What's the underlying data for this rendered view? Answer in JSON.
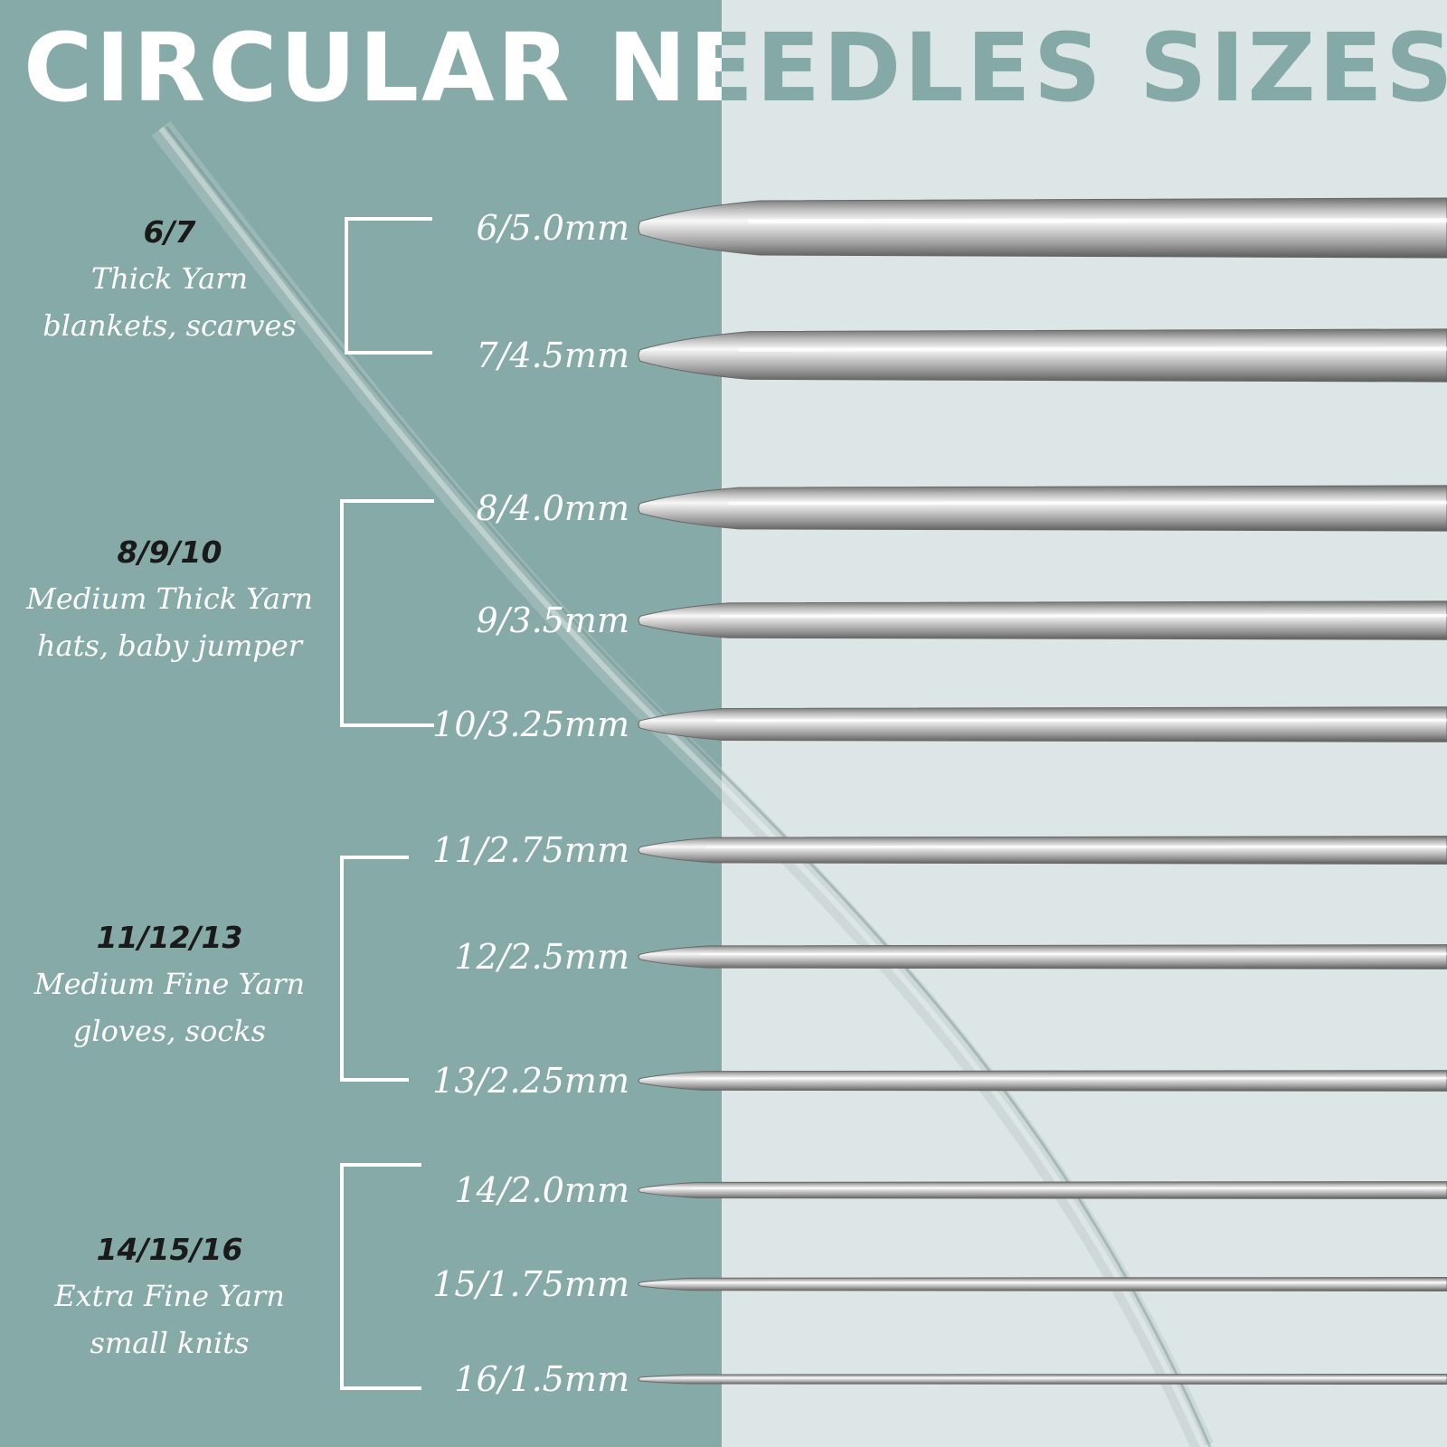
{
  "title": {
    "text": "CIRCULAR NEEDLES SIZES"
  },
  "colors": {
    "panel_dark": "#86aaa8",
    "panel_light": "#dde6e6",
    "title_left": "#ffffff",
    "title_right": "#85a9a7",
    "code_text": "#1a1a1a"
  },
  "categories": [
    {
      "code": "6/7",
      "yarn": "Thick Yarn",
      "uses": "blankets, scarves"
    },
    {
      "code": "8/9/10",
      "yarn": "Medium Thick Yarn",
      "uses": "hats, baby jumper"
    },
    {
      "code": "11/12/13",
      "yarn": "Medium Fine Yarn",
      "uses": "gloves, socks"
    },
    {
      "code": "14/15/16",
      "yarn": "Extra Fine Yarn",
      "uses": "small knits"
    }
  ],
  "needles": [
    {
      "label": "6/5.0mm",
      "size_mm": 5.0
    },
    {
      "label": "7/4.5mm",
      "size_mm": 4.5
    },
    {
      "label": "8/4.0mm",
      "size_mm": 4.0
    },
    {
      "label": "9/3.5mm",
      "size_mm": 3.5
    },
    {
      "label": "10/3.25mm",
      "size_mm": 3.25
    },
    {
      "label": "11/2.75mm",
      "size_mm": 2.75
    },
    {
      "label": "12/2.5mm",
      "size_mm": 2.5
    },
    {
      "label": "13/2.25mm",
      "size_mm": 2.25
    },
    {
      "label": "14/2.0mm",
      "size_mm": 2.0
    },
    {
      "label": "15/1.75mm",
      "size_mm": 1.75
    },
    {
      "label": "16/1.5mm",
      "size_mm": 1.5
    }
  ]
}
